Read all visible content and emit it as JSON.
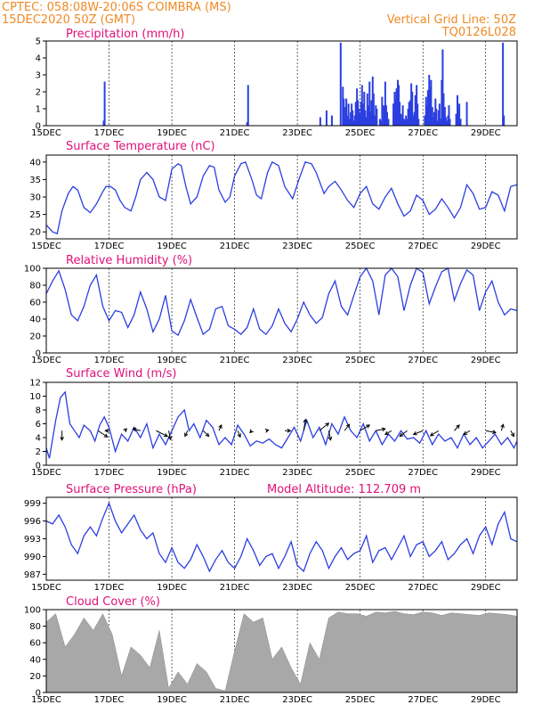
{
  "header": {
    "line1": "CPTEC:   058:08W-20:06S   COIMBRA (MS)",
    "line2": "15DEC2020 50Z (GMT)",
    "grid_note": "Vertical Grid Line: 50Z",
    "model_code": "TQ0126L028"
  },
  "colors": {
    "series": "#2b3fe0",
    "header": "#f08a24",
    "title": "#e0107a",
    "cloud": "#a8a8a8"
  },
  "x_axis": {
    "labels": [
      "15DEC",
      "17DEC",
      "19DEC",
      "21DEC",
      "23DEC",
      "25DEC",
      "27DEC",
      "29DEC"
    ],
    "label_days": [
      0,
      2,
      4,
      6,
      8,
      10,
      12,
      14
    ],
    "range_days": [
      0,
      15
    ]
  },
  "chart_data": [
    {
      "id": "precip",
      "type": "bar",
      "title": "Precipitation (mm/h)",
      "ylim": [
        0,
        5
      ],
      "yticks": [
        0,
        1,
        2,
        3,
        4,
        5
      ],
      "x_days": [
        1.83,
        1.86,
        6.4,
        6.43,
        8.73,
        8.93,
        9.1,
        9.38,
        9.45,
        9.48,
        9.5,
        9.53,
        9.56,
        9.6,
        9.63,
        9.66,
        9.7,
        9.73,
        9.76,
        9.8,
        9.83,
        9.86,
        9.9,
        9.93,
        9.96,
        10.0,
        10.03,
        10.06,
        10.1,
        10.13,
        10.16,
        10.2,
        10.23,
        10.26,
        10.3,
        10.33,
        10.36,
        10.4,
        10.43,
        10.46,
        10.5,
        10.53,
        10.63,
        10.66,
        10.7,
        10.75,
        10.8,
        10.83,
        10.86,
        10.9,
        11.06,
        11.1,
        11.13,
        11.16,
        11.2,
        11.23,
        11.26,
        11.3,
        11.33,
        11.36,
        11.4,
        11.43,
        11.46,
        11.5,
        11.53,
        11.56,
        11.6,
        11.63,
        11.66,
        11.7,
        11.73,
        11.76,
        11.8,
        11.83,
        11.86,
        12.06,
        12.1,
        12.13,
        12.16,
        12.2,
        12.23,
        12.26,
        12.3,
        12.33,
        12.36,
        12.4,
        12.43,
        12.46,
        12.5,
        12.53,
        12.56,
        12.6,
        12.63,
        12.66,
        12.7,
        12.73,
        12.76,
        12.8,
        12.83,
        12.86,
        13.06,
        13.1,
        13.13,
        13.16,
        13.2,
        13.4,
        14.55,
        14.58
      ],
      "values": [
        0.3,
        2.6,
        0.2,
        2.4,
        0.5,
        0.9,
        0.6,
        4.9,
        2.3,
        1.6,
        0.4,
        1.1,
        1.6,
        0.6,
        1.3,
        0.4,
        0.8,
        1.3,
        0.9,
        0.3,
        0.6,
        1.4,
        2.2,
        1.5,
        1.0,
        0.7,
        1.4,
        2.4,
        1.3,
        2.0,
        0.9,
        0.5,
        1.9,
        1.2,
        2.6,
        0.8,
        1.5,
        2.9,
        1.9,
        0.6,
        1.2,
        1.0,
        0.4,
        0.3,
        1.7,
        1.2,
        2.6,
        1.2,
        0.8,
        0.4,
        1.3,
        2.0,
        1.5,
        2.2,
        2.7,
        2.4,
        1.4,
        0.7,
        0.5,
        1.2,
        0.4,
        0.3,
        0.6,
        0.4,
        1.0,
        1.4,
        1.5,
        2.5,
        2.0,
        0.6,
        0.8,
        1.8,
        2.4,
        1.3,
        0.4,
        0.6,
        1.7,
        1.2,
        2.1,
        3.0,
        2.3,
        2.7,
        1.1,
        0.5,
        0.8,
        1.6,
        1.0,
        0.3,
        0.9,
        1.3,
        0.4,
        2.7,
        4.5,
        1.9,
        1.1,
        0.5,
        0.3,
        0.6,
        1.2,
        0.4,
        0.7,
        1.8,
        0.9,
        1.3,
        0.4,
        1.4,
        4.9,
        0.6
      ]
    },
    {
      "id": "temp",
      "type": "line",
      "title": "Surface Temperature (nC)",
      "ylim": [
        18,
        42
      ],
      "yticks": [
        20,
        25,
        30,
        35,
        40
      ],
      "x_days": [
        0.0,
        0.2,
        0.35,
        0.5,
        0.7,
        0.85,
        1.0,
        1.2,
        1.4,
        1.6,
        1.8,
        1.9,
        2.05,
        2.2,
        2.35,
        2.5,
        2.7,
        2.85,
        3.0,
        3.2,
        3.4,
        3.6,
        3.8,
        4.0,
        4.2,
        4.3,
        4.45,
        4.6,
        4.8,
        5.0,
        5.2,
        5.35,
        5.5,
        5.7,
        5.85,
        6.0,
        6.2,
        6.35,
        6.55,
        6.7,
        6.85,
        7.05,
        7.2,
        7.4,
        7.6,
        7.85,
        8.05,
        8.25,
        8.45,
        8.6,
        8.85,
        9.0,
        9.2,
        9.4,
        9.6,
        9.8,
        10.0,
        10.2,
        10.4,
        10.6,
        10.8,
        11.0,
        11.2,
        11.4,
        11.6,
        11.8,
        12.0,
        12.2,
        12.4,
        12.6,
        12.8,
        13.0,
        13.2,
        13.4,
        13.6,
        13.8,
        14.0,
        14.2,
        14.4,
        14.6,
        14.8,
        15.0
      ],
      "values": [
        22.0,
        20.0,
        19.5,
        26.0,
        31.0,
        33.0,
        32.0,
        27.0,
        25.5,
        28.0,
        31.5,
        33.0,
        33.0,
        32.0,
        29.0,
        27.0,
        26.0,
        30.0,
        35.0,
        37.0,
        35.0,
        30.0,
        29.0,
        38.0,
        39.5,
        39.0,
        33.0,
        28.0,
        30.0,
        36.0,
        39.0,
        38.5,
        32.0,
        28.5,
        30.0,
        36.0,
        39.5,
        40.0,
        35.0,
        30.5,
        29.5,
        37.0,
        40.0,
        39.0,
        33.0,
        29.5,
        35.0,
        40.0,
        39.5,
        37.0,
        31.0,
        33.0,
        34.5,
        32.0,
        29.0,
        27.0,
        31.0,
        33.0,
        28.0,
        26.5,
        30.0,
        32.5,
        28.0,
        24.5,
        26.0,
        30.5,
        29.0,
        25.0,
        26.5,
        29.5,
        27.0,
        24.0,
        27.0,
        33.5,
        31.0,
        26.5,
        27.0,
        31.5,
        30.5,
        26.0,
        33.0,
        33.5
      ]
    },
    {
      "id": "rh",
      "type": "line",
      "title": "Relative Humidity (%)",
      "ylim": [
        0,
        100
      ],
      "yticks": [
        0,
        20,
        40,
        60,
        80,
        100
      ],
      "x_days": [
        0.0,
        0.2,
        0.4,
        0.6,
        0.8,
        1.0,
        1.2,
        1.4,
        1.6,
        1.8,
        2.0,
        2.2,
        2.4,
        2.6,
        2.8,
        3.0,
        3.2,
        3.4,
        3.6,
        3.8,
        4.0,
        4.2,
        4.4,
        4.6,
        4.8,
        5.0,
        5.2,
        5.4,
        5.6,
        5.8,
        6.0,
        6.2,
        6.4,
        6.6,
        6.8,
        7.0,
        7.2,
        7.4,
        7.6,
        7.8,
        8.0,
        8.2,
        8.4,
        8.6,
        8.8,
        9.0,
        9.2,
        9.4,
        9.6,
        9.8,
        10.0,
        10.2,
        10.4,
        10.6,
        10.8,
        11.0,
        11.2,
        11.4,
        11.6,
        11.8,
        12.0,
        12.2,
        12.4,
        12.6,
        12.8,
        13.0,
        13.2,
        13.4,
        13.6,
        13.8,
        14.0,
        14.2,
        14.4,
        14.6,
        14.8,
        15.0
      ],
      "values": [
        70.0,
        85.0,
        97.0,
        75.0,
        45.0,
        38.0,
        55.0,
        80.0,
        92.0,
        55.0,
        38.0,
        50.0,
        48.0,
        30.0,
        45.0,
        72.0,
        52.0,
        25.0,
        40.0,
        68.0,
        26.0,
        21.0,
        38.0,
        63.0,
        42.0,
        22.0,
        28.0,
        52.0,
        55.0,
        32.0,
        28.0,
        22.0,
        30.0,
        52.0,
        28.0,
        22.0,
        32.0,
        52.0,
        35.0,
        25.0,
        40.0,
        60.0,
        45.0,
        35.0,
        42.0,
        70.0,
        85.0,
        55.0,
        45.0,
        68.0,
        90.0,
        100.0,
        85.0,
        45.0,
        92.0,
        100.0,
        90.0,
        50.0,
        80.0,
        100.0,
        95.0,
        58.0,
        78.0,
        96.0,
        100.0,
        62.0,
        82.0,
        98.0,
        92.0,
        50.0,
        72.0,
        85.0,
        60.0,
        45.0,
        52.0,
        50.0
      ]
    },
    {
      "id": "wind",
      "type": "line",
      "title": "Surface Wind (m/s)",
      "ylim": [
        0,
        12
      ],
      "yticks": [
        0,
        2,
        4,
        6,
        8,
        10,
        12
      ],
      "x_days": [
        0.0,
        0.1,
        0.3,
        0.45,
        0.6,
        0.75,
        0.9,
        1.05,
        1.2,
        1.4,
        1.55,
        1.7,
        1.85,
        2.0,
        2.2,
        2.4,
        2.6,
        2.8,
        3.0,
        3.2,
        3.4,
        3.6,
        3.8,
        4.0,
        4.2,
        4.4,
        4.55,
        4.7,
        4.9,
        5.1,
        5.3,
        5.5,
        5.7,
        5.9,
        6.1,
        6.3,
        6.5,
        6.7,
        6.9,
        7.1,
        7.3,
        7.5,
        7.7,
        7.9,
        8.1,
        8.3,
        8.5,
        8.7,
        8.9,
        9.1,
        9.3,
        9.5,
        9.7,
        9.9,
        10.1,
        10.3,
        10.5,
        10.7,
        10.9,
        11.1,
        11.3,
        11.5,
        11.7,
        11.9,
        12.1,
        12.3,
        12.5,
        12.7,
        12.9,
        13.1,
        13.3,
        13.5,
        13.7,
        13.9,
        14.1,
        14.3,
        14.5,
        14.7,
        14.9,
        15.0
      ],
      "values": [
        2.5,
        1.0,
        6.5,
        9.8,
        10.6,
        6.0,
        5.0,
        4.0,
        5.8,
        5.0,
        3.5,
        5.8,
        7.0,
        5.5,
        2.0,
        4.5,
        3.5,
        5.5,
        4.0,
        6.0,
        2.5,
        4.5,
        3.0,
        5.0,
        7.0,
        8.0,
        5.0,
        6.0,
        4.0,
        6.5,
        5.5,
        3.0,
        4.0,
        3.0,
        5.8,
        4.5,
        2.8,
        3.5,
        3.2,
        3.8,
        3.0,
        2.5,
        4.0,
        5.5,
        3.5,
        6.5,
        4.0,
        5.5,
        3.0,
        6.0,
        4.5,
        7.0,
        5.0,
        4.0,
        6.0,
        3.5,
        5.0,
        3.0,
        4.5,
        3.5,
        5.0,
        3.8,
        4.0,
        3.2,
        5.0,
        3.0,
        4.5,
        3.5,
        4.0,
        2.5,
        4.5,
        3.0,
        4.0,
        2.5,
        3.5,
        4.5,
        3.0,
        4.0,
        2.5,
        3.5
      ],
      "vectors": {
        "x_days": [
          0.5,
          1.65,
          2.0,
          2.5,
          3.0,
          3.5,
          3.9,
          4.5,
          5.0,
          5.5,
          6.1,
          6.55,
          7.0,
          7.6,
          8.2,
          8.7,
          9.0,
          9.5,
          10.0,
          10.5,
          11.0,
          11.5,
          12.0,
          12.5,
          13.0,
          13.5,
          14.0,
          14.5,
          14.8
        ],
        "u": [
          0.0,
          1.5,
          -0.6,
          0.3,
          -1.2,
          1.8,
          0.3,
          -0.4,
          0.9,
          0.4,
          0.4,
          -0.3,
          0.4,
          0.9,
          0.3,
          1.5,
          0.3,
          0.8,
          1.5,
          1.5,
          -1.0,
          -1.2,
          -1.5,
          -1.3,
          0.8,
          -1.0,
          1.6,
          0.3,
          0.5
        ],
        "v": [
          -1.5,
          -1.0,
          0.0,
          0.3,
          0.3,
          -0.9,
          -1.4,
          -0.9,
          -0.9,
          0.9,
          -1.0,
          -0.3,
          0.1,
          0.0,
          1.8,
          1.2,
          -1.5,
          1.0,
          0.9,
          0.3,
          -0.6,
          -0.9,
          -0.6,
          -0.8,
          0.9,
          -0.6,
          -0.3,
          1.0,
          -0.9
        ]
      }
    },
    {
      "id": "pressure",
      "type": "line",
      "title": "Surface Pressure (hPa)",
      "note": "Model Altitude: 112.709 m",
      "ylim": [
        986,
        1000
      ],
      "yticks": [
        987,
        990,
        993,
        996,
        999
      ],
      "x_days": [
        0.0,
        0.2,
        0.4,
        0.6,
        0.8,
        1.0,
        1.2,
        1.4,
        1.6,
        1.8,
        2.0,
        2.2,
        2.4,
        2.6,
        2.8,
        3.0,
        3.2,
        3.4,
        3.6,
        3.8,
        4.0,
        4.2,
        4.4,
        4.6,
        4.8,
        5.0,
        5.2,
        5.4,
        5.6,
        5.8,
        6.0,
        6.2,
        6.4,
        6.6,
        6.8,
        7.0,
        7.2,
        7.4,
        7.6,
        7.8,
        8.0,
        8.2,
        8.4,
        8.6,
        8.8,
        9.0,
        9.2,
        9.4,
        9.6,
        9.8,
        10.0,
        10.2,
        10.4,
        10.6,
        10.8,
        11.0,
        11.2,
        11.4,
        11.6,
        11.8,
        12.0,
        12.2,
        12.4,
        12.6,
        12.8,
        13.0,
        13.2,
        13.4,
        13.6,
        13.8,
        14.0,
        14.2,
        14.4,
        14.6,
        14.8,
        15.0
      ],
      "values": [
        996.0,
        995.5,
        997.0,
        995.0,
        992.0,
        990.5,
        993.5,
        995.0,
        993.5,
        996.5,
        999.0,
        996.0,
        994.0,
        995.5,
        997.0,
        994.5,
        993.0,
        994.0,
        990.5,
        989.0,
        991.5,
        989.0,
        988.0,
        989.5,
        992.0,
        990.0,
        987.5,
        989.5,
        991.0,
        989.0,
        988.0,
        990.0,
        993.0,
        991.0,
        988.5,
        990.0,
        990.5,
        988.0,
        990.0,
        992.5,
        988.5,
        987.5,
        990.5,
        992.5,
        991.0,
        988.0,
        990.0,
        991.5,
        989.5,
        990.5,
        991.0,
        993.5,
        989.0,
        991.0,
        991.5,
        989.5,
        991.5,
        993.5,
        990.0,
        992.0,
        992.5,
        990.0,
        991.0,
        992.5,
        989.5,
        990.5,
        992.0,
        993.0,
        990.5,
        993.5,
        995.0,
        992.0,
        995.5,
        997.5,
        993.0,
        992.5
      ]
    },
    {
      "id": "cloud",
      "type": "area",
      "title": "Cloud Cover (%)",
      "ylim": [
        0,
        100
      ],
      "yticks": [
        0,
        20,
        40,
        60,
        80,
        100
      ],
      "x_days": [
        0.0,
        0.3,
        0.6,
        0.9,
        1.2,
        1.5,
        1.8,
        2.1,
        2.4,
        2.7,
        3.0,
        3.3,
        3.6,
        3.9,
        4.2,
        4.5,
        4.8,
        5.1,
        5.4,
        5.7,
        6.0,
        6.3,
        6.6,
        6.9,
        7.2,
        7.5,
        7.8,
        8.1,
        8.4,
        8.7,
        9.0,
        9.3,
        9.6,
        9.9,
        10.2,
        10.5,
        10.8,
        11.1,
        11.4,
        11.7,
        12.0,
        12.3,
        12.6,
        12.9,
        13.2,
        13.5,
        13.8,
        14.1,
        14.4,
        14.7,
        15.0
      ],
      "values": [
        85.0,
        95.0,
        55.0,
        70.0,
        90.0,
        75.0,
        95.0,
        70.0,
        20.0,
        55.0,
        45.0,
        30.0,
        75.0,
        5.0,
        25.0,
        10.0,
        35.0,
        25.0,
        5.0,
        2.0,
        50.0,
        95.0,
        85.0,
        90.0,
        40.0,
        55.0,
        30.0,
        10.0,
        60.0,
        40.0,
        90.0,
        97.0,
        95.0,
        95.0,
        92.0,
        97.0,
        96.0,
        98.0,
        95.0,
        94.0,
        97.0,
        96.0,
        93.0,
        96.0,
        95.0,
        94.0,
        93.0,
        96.0,
        95.0,
        94.0,
        92.0
      ]
    }
  ]
}
